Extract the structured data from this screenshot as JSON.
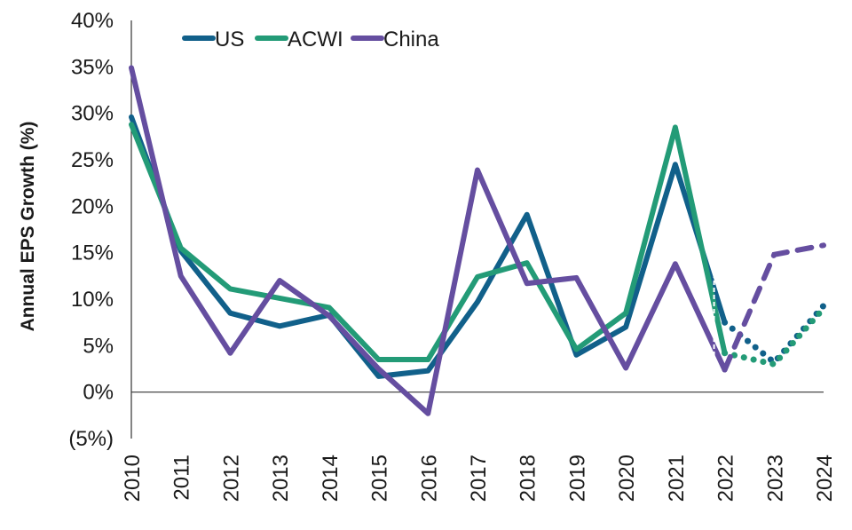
{
  "chart_data": {
    "type": "line",
    "title": "",
    "xlabel": "",
    "ylabel": "Annual EPS Growth (%)",
    "ylim": [
      -5,
      40
    ],
    "y_ticks": [
      "(5%)",
      "0%",
      "5%",
      "10%",
      "15%",
      "20%",
      "25%",
      "30%",
      "35%",
      "40%"
    ],
    "y_tick_values": [
      -5,
      0,
      5,
      10,
      15,
      20,
      25,
      30,
      35,
      40
    ],
    "categories": [
      "2010",
      "2011",
      "2012",
      "2013",
      "2014",
      "2015",
      "2016",
      "2017",
      "2018",
      "2019",
      "2020",
      "2021",
      "2022",
      "2023",
      "2024"
    ],
    "forecast_from": "2022",
    "grid": false,
    "legend_position": "top",
    "series": [
      {
        "name": "US",
        "color": "#11608a",
        "forecast_style": "dotted",
        "values": [
          29.6,
          15.2,
          8.5,
          7.1,
          8.3,
          1.7,
          2.3,
          9.7,
          19.1,
          4.0,
          7.0,
          24.5,
          7.5,
          3.2,
          9.3
        ]
      },
      {
        "name": "ACWI",
        "color": "#239b77",
        "forecast_style": "dotted",
        "values": [
          28.8,
          15.5,
          11.1,
          10.1,
          9.1,
          3.5,
          3.5,
          12.4,
          13.9,
          4.6,
          8.5,
          28.5,
          4.2,
          3.0,
          9.0
        ]
      },
      {
        "name": "China",
        "color": "#654ea0",
        "forecast_style": "dashed",
        "values": [
          34.9,
          12.5,
          4.2,
          12.0,
          8.2,
          2.5,
          -2.3,
          23.9,
          11.7,
          12.3,
          2.6,
          13.8,
          2.4,
          14.8,
          15.8
        ]
      }
    ]
  }
}
